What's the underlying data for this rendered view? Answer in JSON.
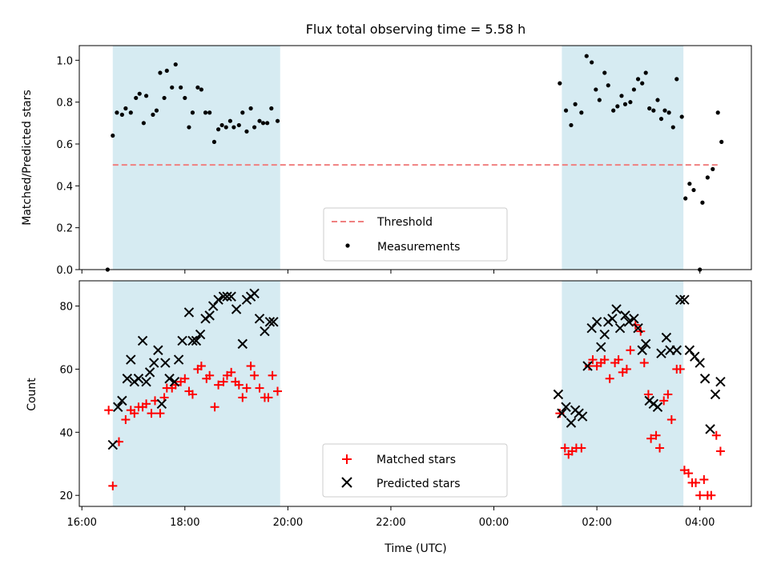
{
  "chart_data": [
    {
      "type": "scatter",
      "title": "Flux total observing time = 5.58 h",
      "ylabel": "Matched/Predicted stars",
      "ylim": [
        0,
        1.07
      ],
      "yticks": [
        "0.0",
        "0.2",
        "0.4",
        "0.6",
        "0.8",
        "1.0"
      ],
      "x_axis": "time_utc_hours_since_16:00",
      "shaded_regions": [
        [
          16.6,
          19.85
        ],
        [
          25.32,
          27.68
        ]
      ],
      "threshold": {
        "name": "Threshold",
        "y": 0.5,
        "x_range": [
          16.6,
          28.35
        ],
        "color": "#f08080"
      },
      "legend": [
        "Threshold",
        "Measurements"
      ],
      "legend_position": "lower center",
      "series": [
        {
          "name": "Measurements",
          "color": "#000000",
          "points": [
            [
              16.5,
              0.0
            ],
            [
              16.6,
              0.64
            ],
            [
              16.68,
              0.75
            ],
            [
              16.78,
              0.74
            ],
            [
              16.85,
              0.77
            ],
            [
              16.95,
              0.75
            ],
            [
              17.05,
              0.82
            ],
            [
              17.12,
              0.84
            ],
            [
              17.2,
              0.7
            ],
            [
              17.25,
              0.83
            ],
            [
              17.38,
              0.74
            ],
            [
              17.45,
              0.76
            ],
            [
              17.52,
              0.94
            ],
            [
              17.6,
              0.82
            ],
            [
              17.65,
              0.95
            ],
            [
              17.75,
              0.87
            ],
            [
              17.82,
              0.98
            ],
            [
              17.92,
              0.87
            ],
            [
              18.0,
              0.82
            ],
            [
              18.08,
              0.68
            ],
            [
              18.15,
              0.75
            ],
            [
              18.25,
              0.87
            ],
            [
              18.32,
              0.86
            ],
            [
              18.4,
              0.75
            ],
            [
              18.48,
              0.75
            ],
            [
              18.57,
              0.61
            ],
            [
              18.65,
              0.67
            ],
            [
              18.72,
              0.69
            ],
            [
              18.8,
              0.68
            ],
            [
              18.88,
              0.71
            ],
            [
              18.95,
              0.68
            ],
            [
              19.05,
              0.69
            ],
            [
              19.12,
              0.75
            ],
            [
              19.2,
              0.66
            ],
            [
              19.28,
              0.77
            ],
            [
              19.35,
              0.68
            ],
            [
              19.45,
              0.71
            ],
            [
              19.52,
              0.7
            ],
            [
              19.6,
              0.7
            ],
            [
              19.68,
              0.77
            ],
            [
              19.8,
              0.71
            ],
            [
              25.28,
              0.89
            ],
            [
              25.4,
              0.76
            ],
            [
              25.5,
              0.69
            ],
            [
              25.58,
              0.79
            ],
            [
              25.7,
              0.75
            ],
            [
              25.8,
              1.02
            ],
            [
              25.9,
              0.99
            ],
            [
              25.98,
              0.86
            ],
            [
              26.05,
              0.81
            ],
            [
              26.15,
              0.94
            ],
            [
              26.22,
              0.88
            ],
            [
              26.32,
              0.76
            ],
            [
              26.4,
              0.78
            ],
            [
              26.48,
              0.83
            ],
            [
              26.55,
              0.79
            ],
            [
              26.65,
              0.8
            ],
            [
              26.72,
              0.86
            ],
            [
              26.8,
              0.91
            ],
            [
              26.88,
              0.89
            ],
            [
              26.95,
              0.94
            ],
            [
              27.02,
              0.77
            ],
            [
              27.1,
              0.76
            ],
            [
              27.18,
              0.81
            ],
            [
              27.25,
              0.72
            ],
            [
              27.32,
              0.76
            ],
            [
              27.4,
              0.75
            ],
            [
              27.48,
              0.68
            ],
            [
              27.55,
              0.91
            ],
            [
              27.65,
              0.73
            ],
            [
              27.72,
              0.34
            ],
            [
              27.8,
              0.41
            ],
            [
              27.88,
              0.38
            ],
            [
              28.0,
              0.0
            ],
            [
              28.05,
              0.32
            ],
            [
              28.15,
              0.44
            ],
            [
              28.25,
              0.48
            ],
            [
              28.35,
              0.75
            ],
            [
              28.42,
              0.61
            ]
          ]
        }
      ]
    },
    {
      "type": "scatter",
      "xlabel": "Time (UTC)",
      "ylabel": "Count",
      "ylim": [
        16.5,
        88
      ],
      "yticks": [
        "20",
        "40",
        "60",
        "80"
      ],
      "xlim": [
        15.95,
        29.0
      ],
      "xtick_labels": [
        "16:00",
        "18:00",
        "20:00",
        "22:00",
        "00:00",
        "02:00",
        "04:00"
      ],
      "legend": [
        "Matched stars",
        "Predicted stars"
      ],
      "legend_position": "lower center",
      "series": [
        {
          "name": "Matched stars",
          "color": "#ff0000",
          "marker": "plus",
          "points": [
            [
              16.52,
              47
            ],
            [
              16.6,
              23
            ],
            [
              16.72,
              37
            ],
            [
              16.85,
              44
            ],
            [
              16.95,
              47
            ],
            [
              17.02,
              46
            ],
            [
              17.1,
              48
            ],
            [
              17.18,
              48
            ],
            [
              17.25,
              49
            ],
            [
              17.35,
              46
            ],
            [
              17.42,
              50
            ],
            [
              17.52,
              46
            ],
            [
              17.6,
              51
            ],
            [
              17.65,
              54
            ],
            [
              17.75,
              54
            ],
            [
              17.82,
              55
            ],
            [
              17.92,
              56
            ],
            [
              18.0,
              57
            ],
            [
              18.08,
              53
            ],
            [
              18.15,
              52
            ],
            [
              18.25,
              60
            ],
            [
              18.32,
              61
            ],
            [
              18.42,
              57
            ],
            [
              18.48,
              58
            ],
            [
              18.58,
              48
            ],
            [
              18.65,
              55
            ],
            [
              18.75,
              56
            ],
            [
              18.82,
              58
            ],
            [
              18.9,
              59
            ],
            [
              18.98,
              56
            ],
            [
              19.05,
              55
            ],
            [
              19.12,
              51
            ],
            [
              19.2,
              54
            ],
            [
              19.28,
              61
            ],
            [
              19.35,
              58
            ],
            [
              19.45,
              54
            ],
            [
              19.55,
              51
            ],
            [
              19.62,
              51
            ],
            [
              19.7,
              58
            ],
            [
              19.8,
              53
            ],
            [
              25.28,
              46
            ],
            [
              25.38,
              35
            ],
            [
              25.45,
              33
            ],
            [
              25.52,
              34
            ],
            [
              25.6,
              35
            ],
            [
              25.7,
              35
            ],
            [
              25.85,
              61
            ],
            [
              25.92,
              63
            ],
            [
              26.0,
              61
            ],
            [
              26.08,
              62
            ],
            [
              26.15,
              63
            ],
            [
              26.25,
              57
            ],
            [
              26.35,
              62
            ],
            [
              26.42,
              63
            ],
            [
              26.5,
              59
            ],
            [
              26.58,
              60
            ],
            [
              26.65,
              66
            ],
            [
              26.75,
              74
            ],
            [
              26.85,
              72
            ],
            [
              26.92,
              62
            ],
            [
              27.0,
              52
            ],
            [
              27.05,
              38
            ],
            [
              27.15,
              39
            ],
            [
              27.22,
              35
            ],
            [
              27.3,
              50
            ],
            [
              27.38,
              52
            ],
            [
              27.45,
              44
            ],
            [
              27.55,
              60
            ],
            [
              27.62,
              60
            ],
            [
              27.7,
              28
            ],
            [
              27.78,
              27
            ],
            [
              27.85,
              24
            ],
            [
              27.92,
              24
            ],
            [
              28.0,
              20
            ],
            [
              28.08,
              25
            ],
            [
              28.15,
              20
            ],
            [
              28.22,
              20
            ],
            [
              28.32,
              39
            ],
            [
              28.4,
              34
            ]
          ]
        },
        {
          "name": "Predicted stars",
          "color": "#000000",
          "marker": "x",
          "points": [
            [
              16.6,
              36
            ],
            [
              16.7,
              48
            ],
            [
              16.78,
              50
            ],
            [
              16.88,
              57
            ],
            [
              16.95,
              63
            ],
            [
              17.02,
              56
            ],
            [
              17.1,
              57
            ],
            [
              17.18,
              69
            ],
            [
              17.25,
              56
            ],
            [
              17.32,
              59
            ],
            [
              17.4,
              62
            ],
            [
              17.48,
              66
            ],
            [
              17.55,
              49
            ],
            [
              17.62,
              62
            ],
            [
              17.7,
              57
            ],
            [
              17.8,
              56
            ],
            [
              17.88,
              63
            ],
            [
              17.95,
              69
            ],
            [
              18.08,
              78
            ],
            [
              18.15,
              69
            ],
            [
              18.22,
              69
            ],
            [
              18.3,
              71
            ],
            [
              18.4,
              76
            ],
            [
              18.48,
              77
            ],
            [
              18.55,
              80
            ],
            [
              18.65,
              82
            ],
            [
              18.75,
              83
            ],
            [
              18.82,
              83
            ],
            [
              18.9,
              83
            ],
            [
              19.0,
              79
            ],
            [
              19.12,
              68
            ],
            [
              19.2,
              82
            ],
            [
              19.28,
              83
            ],
            [
              19.35,
              84
            ],
            [
              19.45,
              76
            ],
            [
              19.55,
              72
            ],
            [
              19.65,
              75
            ],
            [
              19.72,
              75
            ],
            [
              25.25,
              52
            ],
            [
              25.32,
              46
            ],
            [
              25.4,
              48
            ],
            [
              25.5,
              43
            ],
            [
              25.58,
              47
            ],
            [
              25.65,
              46
            ],
            [
              25.72,
              45
            ],
            [
              25.82,
              61
            ],
            [
              25.9,
              73
            ],
            [
              26.0,
              75
            ],
            [
              26.08,
              67
            ],
            [
              26.15,
              71
            ],
            [
              26.22,
              75
            ],
            [
              26.3,
              76
            ],
            [
              26.38,
              79
            ],
            [
              26.45,
              73
            ],
            [
              26.55,
              77
            ],
            [
              26.62,
              75
            ],
            [
              26.72,
              76
            ],
            [
              26.8,
              73
            ],
            [
              26.88,
              66
            ],
            [
              26.95,
              68
            ],
            [
              27.02,
              50
            ],
            [
              27.1,
              49
            ],
            [
              27.18,
              48
            ],
            [
              27.25,
              65
            ],
            [
              27.35,
              70
            ],
            [
              27.42,
              66
            ],
            [
              27.55,
              66
            ],
            [
              27.62,
              82
            ],
            [
              27.7,
              82
            ],
            [
              27.8,
              66
            ],
            [
              27.9,
              64
            ],
            [
              28.0,
              62
            ],
            [
              28.1,
              57
            ],
            [
              28.2,
              41
            ],
            [
              28.3,
              52
            ],
            [
              28.4,
              56
            ]
          ]
        }
      ]
    }
  ]
}
